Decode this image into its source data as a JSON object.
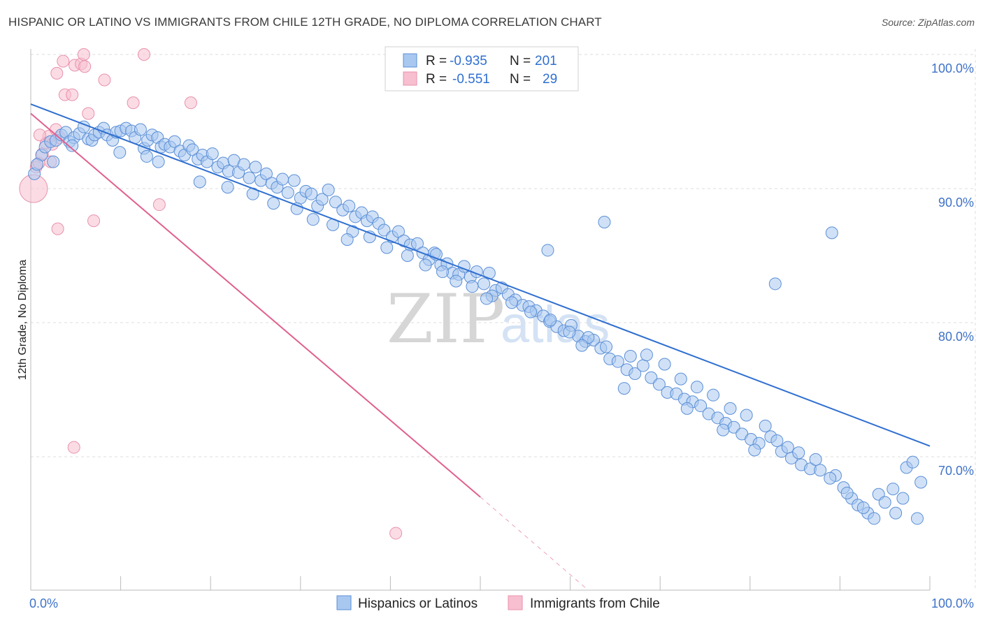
{
  "title": "HISPANIC OR LATINO VS IMMIGRANTS FROM CHILE 12TH GRADE, NO DIPLOMA CORRELATION CHART",
  "source": "Source: ZipAtlas.com",
  "watermark": {
    "zip": "ZIP",
    "atlas": "atlas"
  },
  "colors": {
    "blue_fill": "#a9c8f0",
    "blue_stroke": "#5b8fd6",
    "blue_line": "#2f6fd0",
    "pink_fill": "#f7bfd0",
    "pink_stroke": "#e892ad",
    "pink_line": "#e0608f",
    "grid": "#dddddd",
    "axis_text": "#3f72c9"
  },
  "legend": {
    "rows": [
      {
        "r_label": "R =",
        "r_value": "-0.935",
        "n_label": "N =",
        "n_value": "201"
      },
      {
        "r_label": "R =",
        "r_value": "-0.551",
        "n_label": "N =",
        "n_value": "29"
      }
    ]
  },
  "chart_data": {
    "type": "scatter",
    "title": "HISPANIC OR LATINO VS IMMIGRANTS FROM CHILE 12TH GRADE, NO DIPLOMA CORRELATION CHART",
    "xlabel": "",
    "ylabel": "12th Grade, No Diploma",
    "xlim": [
      0,
      100
    ],
    "ylim": [
      60,
      100
    ],
    "x_tick_labels": [
      "0.0%",
      "100.0%"
    ],
    "y_ticks": [
      70,
      80,
      90,
      100
    ],
    "y_tick_labels": [
      "70.0%",
      "80.0%",
      "90.0%",
      "100.0%"
    ],
    "grid": true,
    "legend_position": "top-center",
    "series": [
      {
        "name": "Hispanics or Latinos",
        "r": -0.935,
        "n": 201,
        "trend": {
          "x": [
            0,
            100
          ],
          "y": [
            96.3,
            70.8
          ]
        },
        "points": [
          [
            0.4,
            91.1
          ],
          [
            1.2,
            92.5
          ],
          [
            1.6,
            93.1
          ],
          [
            2.2,
            93.5
          ],
          [
            2.8,
            93.6
          ],
          [
            3.4,
            94.0
          ],
          [
            3.9,
            94.2
          ],
          [
            4.3,
            93.5
          ],
          [
            4.8,
            93.8
          ],
          [
            5.4,
            94.1
          ],
          [
            5.9,
            94.6
          ],
          [
            6.4,
            93.7
          ],
          [
            6.8,
            93.6
          ],
          [
            7.1,
            94.0
          ],
          [
            7.6,
            94.2
          ],
          [
            8.1,
            94.5
          ],
          [
            8.5,
            94.0
          ],
          [
            9.1,
            93.6
          ],
          [
            9.5,
            94.2
          ],
          [
            10.0,
            94.3
          ],
          [
            10.6,
            94.5
          ],
          [
            11.2,
            94.3
          ],
          [
            11.6,
            93.8
          ],
          [
            12.2,
            94.4
          ],
          [
            12.6,
            93.0
          ],
          [
            13.0,
            93.6
          ],
          [
            13.5,
            94.0
          ],
          [
            14.1,
            93.8
          ],
          [
            14.5,
            93.1
          ],
          [
            14.9,
            93.3
          ],
          [
            15.5,
            93.1
          ],
          [
            16.0,
            93.5
          ],
          [
            16.6,
            92.8
          ],
          [
            17.1,
            92.5
          ],
          [
            17.6,
            93.2
          ],
          [
            18.0,
            92.9
          ],
          [
            18.6,
            92.2
          ],
          [
            19.1,
            92.5
          ],
          [
            19.6,
            92.0
          ],
          [
            20.2,
            92.6
          ],
          [
            20.8,
            91.6
          ],
          [
            21.4,
            91.9
          ],
          [
            22.0,
            91.3
          ],
          [
            22.6,
            92.1
          ],
          [
            23.1,
            91.2
          ],
          [
            23.7,
            91.8
          ],
          [
            24.3,
            90.8
          ],
          [
            25.0,
            91.6
          ],
          [
            25.6,
            90.6
          ],
          [
            26.2,
            91.1
          ],
          [
            26.8,
            90.4
          ],
          [
            27.4,
            90.1
          ],
          [
            28.0,
            90.7
          ],
          [
            28.6,
            89.7
          ],
          [
            29.3,
            90.6
          ],
          [
            30.0,
            89.3
          ],
          [
            30.6,
            89.8
          ],
          [
            31.2,
            89.6
          ],
          [
            31.9,
            88.7
          ],
          [
            32.4,
            89.2
          ],
          [
            33.1,
            89.9
          ],
          [
            33.9,
            89.0
          ],
          [
            34.7,
            88.4
          ],
          [
            35.4,
            88.7
          ],
          [
            36.1,
            87.9
          ],
          [
            36.8,
            88.2
          ],
          [
            37.4,
            87.6
          ],
          [
            38.0,
            87.9
          ],
          [
            38.7,
            87.4
          ],
          [
            39.3,
            86.9
          ],
          [
            40.2,
            86.4
          ],
          [
            40.9,
            86.8
          ],
          [
            41.5,
            86.1
          ],
          [
            42.2,
            85.8
          ],
          [
            43.0,
            85.9
          ],
          [
            43.6,
            85.2
          ],
          [
            44.3,
            84.7
          ],
          [
            44.9,
            85.2
          ],
          [
            45.6,
            84.3
          ],
          [
            46.3,
            84.4
          ],
          [
            46.9,
            83.7
          ],
          [
            47.6,
            83.6
          ],
          [
            48.2,
            84.2
          ],
          [
            48.9,
            83.4
          ],
          [
            49.6,
            83.8
          ],
          [
            50.4,
            82.9
          ],
          [
            51.0,
            83.7
          ],
          [
            51.7,
            82.4
          ],
          [
            52.4,
            82.6
          ],
          [
            53.1,
            82.1
          ],
          [
            53.9,
            81.7
          ],
          [
            54.7,
            81.3
          ],
          [
            55.4,
            81.2
          ],
          [
            56.2,
            80.9
          ],
          [
            57.0,
            80.5
          ],
          [
            57.7,
            80.1
          ],
          [
            58.5,
            79.7
          ],
          [
            59.3,
            79.4
          ],
          [
            60.1,
            79.8
          ],
          [
            60.9,
            79.0
          ],
          [
            61.7,
            78.6
          ],
          [
            62.6,
            78.7
          ],
          [
            63.4,
            78.1
          ],
          [
            64.4,
            77.3
          ],
          [
            65.3,
            77.1
          ],
          [
            66.3,
            76.5
          ],
          [
            67.2,
            76.2
          ],
          [
            68.1,
            76.8
          ],
          [
            69.0,
            75.9
          ],
          [
            69.9,
            75.4
          ],
          [
            70.8,
            74.8
          ],
          [
            71.8,
            74.7
          ],
          [
            72.7,
            74.3
          ],
          [
            73.6,
            74.1
          ],
          [
            74.5,
            73.8
          ],
          [
            75.4,
            73.2
          ],
          [
            76.4,
            72.9
          ],
          [
            77.3,
            72.5
          ],
          [
            78.2,
            72.2
          ],
          [
            79.1,
            71.7
          ],
          [
            80.1,
            71.3
          ],
          [
            81.0,
            71.0
          ],
          [
            82.3,
            71.5
          ],
          [
            83.5,
            70.4
          ],
          [
            84.6,
            69.9
          ],
          [
            85.7,
            69.4
          ],
          [
            86.7,
            69.1
          ],
          [
            87.8,
            69.0
          ],
          [
            89.5,
            68.6
          ],
          [
            90.4,
            67.7
          ],
          [
            91.3,
            66.9
          ],
          [
            92.0,
            66.4
          ],
          [
            93.1,
            65.8
          ],
          [
            94.3,
            67.2
          ],
          [
            95.0,
            66.6
          ],
          [
            96.2,
            65.8
          ],
          [
            97.4,
            69.2
          ],
          [
            98.1,
            69.6
          ],
          [
            99.0,
            68.1
          ],
          [
            0.7,
            91.8
          ],
          [
            2.5,
            92.0
          ],
          [
            4.6,
            93.2
          ],
          [
            9.9,
            92.7
          ],
          [
            12.9,
            92.4
          ],
          [
            14.2,
            92.0
          ],
          [
            18.8,
            90.5
          ],
          [
            21.9,
            90.1
          ],
          [
            24.7,
            89.6
          ],
          [
            27.0,
            88.9
          ],
          [
            29.6,
            88.5
          ],
          [
            31.4,
            87.7
          ],
          [
            33.6,
            87.3
          ],
          [
            35.8,
            86.8
          ],
          [
            37.7,
            86.4
          ],
          [
            39.6,
            85.6
          ],
          [
            41.9,
            85.0
          ],
          [
            43.9,
            84.3
          ],
          [
            45.8,
            83.8
          ],
          [
            47.3,
            83.1
          ],
          [
            49.1,
            82.7
          ],
          [
            51.3,
            82.0
          ],
          [
            53.5,
            81.5
          ],
          [
            55.6,
            80.8
          ],
          [
            57.8,
            80.2
          ],
          [
            59.9,
            79.3
          ],
          [
            62.0,
            78.9
          ],
          [
            64.0,
            78.2
          ],
          [
            66.7,
            77.5
          ],
          [
            68.5,
            77.6
          ],
          [
            70.5,
            76.9
          ],
          [
            72.3,
            75.8
          ],
          [
            74.1,
            75.2
          ],
          [
            75.9,
            74.6
          ],
          [
            77.8,
            73.6
          ],
          [
            79.6,
            73.1
          ],
          [
            81.7,
            72.3
          ],
          [
            83.0,
            71.2
          ],
          [
            84.2,
            70.7
          ],
          [
            85.4,
            70.3
          ],
          [
            87.3,
            69.8
          ],
          [
            88.9,
            68.4
          ],
          [
            90.8,
            67.3
          ],
          [
            92.6,
            66.2
          ],
          [
            93.8,
            65.4
          ],
          [
            95.9,
            67.6
          ],
          [
            97.0,
            66.9
          ],
          [
            98.6,
            65.4
          ],
          [
            89.1,
            86.7
          ],
          [
            82.8,
            82.9
          ],
          [
            63.8,
            87.5
          ],
          [
            57.5,
            85.4
          ],
          [
            45.1,
            85.1
          ],
          [
            35.2,
            86.2
          ],
          [
            50.7,
            81.8
          ],
          [
            61.3,
            78.3
          ],
          [
            66.0,
            75.1
          ],
          [
            73.0,
            73.6
          ],
          [
            77.0,
            72.0
          ],
          [
            80.5,
            70.5
          ]
        ]
      },
      {
        "name": "Immigrants from Chile",
        "r": -0.551,
        "n": 29,
        "trend": {
          "x": [
            0,
            50
          ],
          "y": [
            95.6,
            67.0
          ],
          "dashed_to": {
            "x": 62,
            "y": 60.0
          }
        },
        "points": [
          [
            0.3,
            90.0
          ],
          [
            0.6,
            91.6
          ],
          [
            0.9,
            91.9
          ],
          [
            1.3,
            92.6
          ],
          [
            1.7,
            93.4
          ],
          [
            2.0,
            93.9
          ],
          [
            2.4,
            93.3
          ],
          [
            2.8,
            94.4
          ],
          [
            3.2,
            93.8
          ],
          [
            1.0,
            94.0
          ],
          [
            2.2,
            92.0
          ],
          [
            3.0,
            87.0
          ],
          [
            3.8,
            97.0
          ],
          [
            4.6,
            97.0
          ],
          [
            4.9,
            99.2
          ],
          [
            5.6,
            99.3
          ],
          [
            5.9,
            100.0
          ],
          [
            6.0,
            99.1
          ],
          [
            8.2,
            98.1
          ],
          [
            11.4,
            96.4
          ],
          [
            14.3,
            88.8
          ],
          [
            3.6,
            99.5
          ],
          [
            2.9,
            98.6
          ],
          [
            6.4,
            95.6
          ],
          [
            7.0,
            87.6
          ],
          [
            12.6,
            100.0
          ],
          [
            17.8,
            96.4
          ],
          [
            4.8,
            70.7
          ],
          [
            40.6,
            64.3
          ]
        ]
      }
    ]
  },
  "bottom_legend": {
    "items": [
      "Hispanics or Latinos",
      "Immigrants from Chile"
    ]
  }
}
